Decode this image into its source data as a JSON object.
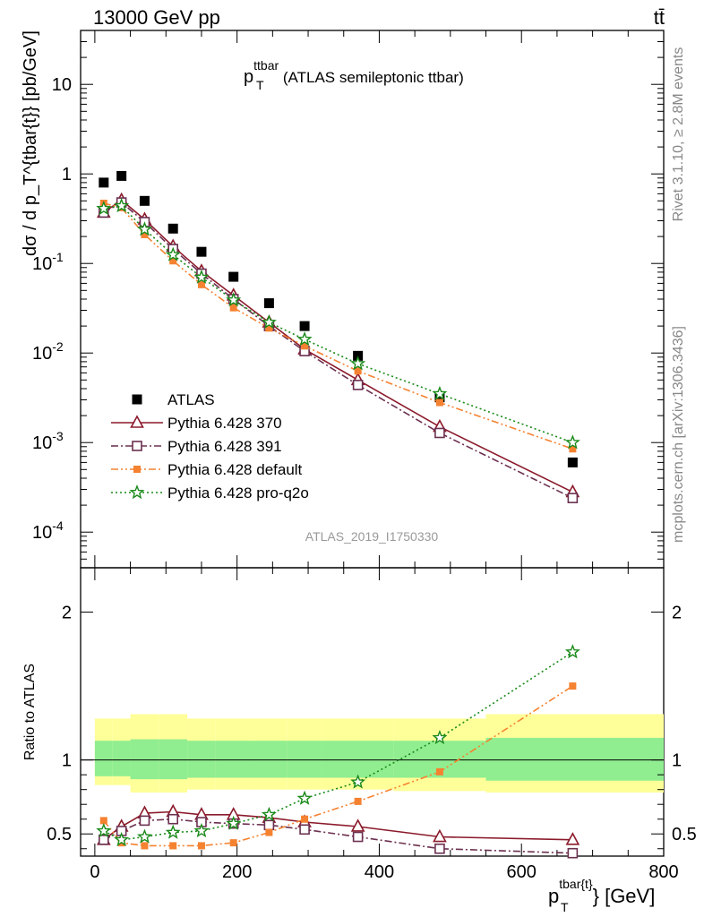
{
  "header": {
    "energy": "13000 GeV pp",
    "process": "tt̄"
  },
  "side_text": {
    "rivet": "Rivet 3.1.10, ≥ 2.8M events",
    "mcplots": "mcplots.cern.ch [arXiv:1306.3436]"
  },
  "chart_data": [
    {
      "type": "scatter",
      "title": "p_T^{ttbar} (ATLAS semileptonic ttbar)",
      "title_main": "p",
      "title_sub": "T",
      "title_sup": "ttbar",
      "title_rest": " (ATLAS semileptonic ttbar)",
      "ylabel": "dσ / d p_T^{tbar{t}} [pb/GeV]",
      "yscale": "log",
      "ylim": [
        4e-05,
        40
      ],
      "xlim": [
        -20,
        800
      ],
      "watermark": "ATLAS_2019_I1750330",
      "legend_position": "lower-left",
      "y_tick_labels": [
        "10",
        "1",
        "10^-1",
        "10^-2",
        "10^-3",
        "10^-4"
      ],
      "x": [
        12.5,
        37.5,
        70,
        110,
        150,
        195,
        245,
        295,
        370,
        485,
        672
      ],
      "series": [
        {
          "name": "ATLAS",
          "color": "#000000",
          "marker": "square-filled",
          "line": "none",
          "values": [
            0.8,
            0.95,
            0.5,
            0.245,
            0.135,
            0.071,
            0.036,
            0.02,
            0.0093,
            0.0032,
            0.0006
          ]
        },
        {
          "name": "Pythia 6.428 370",
          "color": "#8b1a2b",
          "marker": "triangle-open",
          "line": "solid",
          "values": [
            0.37,
            0.51,
            0.31,
            0.155,
            0.082,
            0.044,
            0.022,
            0.011,
            0.005,
            0.0015,
            0.00028
          ]
        },
        {
          "name": "Pythia 6.428 391",
          "color": "#6b3050",
          "marker": "square-open",
          "line": "dashdot",
          "values": [
            0.37,
            0.48,
            0.29,
            0.145,
            0.077,
            0.04,
            0.02,
            0.0105,
            0.0044,
            0.00128,
            0.00024
          ]
        },
        {
          "name": "Pythia 6.428 default",
          "color": "#f58231",
          "marker": "square-filled-small",
          "line": "dashdotdot",
          "values": [
            0.47,
            0.42,
            0.21,
            0.107,
            0.058,
            0.032,
            0.019,
            0.012,
            0.0063,
            0.0028,
            0.00085
          ]
        },
        {
          "name": "Pythia 6.428 pro-q2o",
          "color": "#1a8a1a",
          "marker": "star",
          "line": "dotted",
          "values": [
            0.41,
            0.44,
            0.24,
            0.125,
            0.07,
            0.039,
            0.022,
            0.0142,
            0.0076,
            0.0035,
            0.001
          ]
        }
      ]
    },
    {
      "type": "line",
      "ylabel": "Ratio to ATLAS",
      "xlabel": "p_T^{tbar{t}} [GeV]",
      "xlabel_main": "p",
      "xlabel_sub": "T",
      "xlabel_sup": "tbar{t}",
      "xlabel_rest": "} [GeV]",
      "ylim": [
        0.35,
        2.3
      ],
      "xlim": [
        -20,
        800
      ],
      "x_tick_labels": [
        "0",
        "200",
        "400",
        "600",
        "800"
      ],
      "y_tick_labels": [
        "0.5",
        "1",
        "2"
      ],
      "reference_line": 1,
      "x": [
        12.5,
        37.5,
        70,
        110,
        150,
        195,
        245,
        295,
        370,
        485,
        672
      ],
      "bands": {
        "bin_edges": [
          0,
          25,
          50,
          90,
          130,
          170,
          220,
          270,
          320,
          420,
          550,
          800
        ],
        "stat": {
          "color": "#90ee90",
          "low": [
            0.89,
            0.89,
            0.87,
            0.87,
            0.88,
            0.88,
            0.88,
            0.88,
            0.88,
            0.88,
            0.86
          ],
          "high": [
            1.13,
            1.13,
            1.14,
            1.14,
            1.13,
            1.13,
            1.13,
            1.13,
            1.13,
            1.13,
            1.15
          ]
        },
        "total": {
          "color": "#ffff99",
          "low": [
            0.83,
            0.83,
            0.78,
            0.78,
            0.8,
            0.8,
            0.8,
            0.8,
            0.8,
            0.79,
            0.78
          ],
          "high": [
            1.28,
            1.28,
            1.31,
            1.31,
            1.28,
            1.28,
            1.28,
            1.28,
            1.28,
            1.28,
            1.31
          ]
        }
      },
      "series": [
        {
          "name": "Pythia 6.428 370",
          "color": "#8b1a2b",
          "marker": "triangle-open",
          "line": "solid",
          "values": [
            0.46,
            0.55,
            0.64,
            0.65,
            0.63,
            0.63,
            0.61,
            0.58,
            0.55,
            0.48,
            0.46
          ]
        },
        {
          "name": "Pythia 6.428 391",
          "color": "#6b3050",
          "marker": "square-open",
          "line": "dashdot",
          "values": [
            0.46,
            0.52,
            0.59,
            0.6,
            0.58,
            0.57,
            0.56,
            0.53,
            0.48,
            0.4,
            0.37
          ]
        },
        {
          "name": "Pythia 6.428 default",
          "color": "#f58231",
          "marker": "square-filled-small",
          "line": "dashdotdot",
          "values": [
            0.59,
            0.44,
            0.42,
            0.42,
            0.42,
            0.44,
            0.51,
            0.6,
            0.72,
            0.92,
            1.5
          ]
        },
        {
          "name": "Pythia 6.428 pro-q2o",
          "color": "#1a8a1a",
          "marker": "star",
          "line": "dotted",
          "values": [
            0.52,
            0.46,
            0.48,
            0.51,
            0.52,
            0.57,
            0.63,
            0.74,
            0.85,
            1.15,
            1.73
          ]
        }
      ]
    }
  ]
}
